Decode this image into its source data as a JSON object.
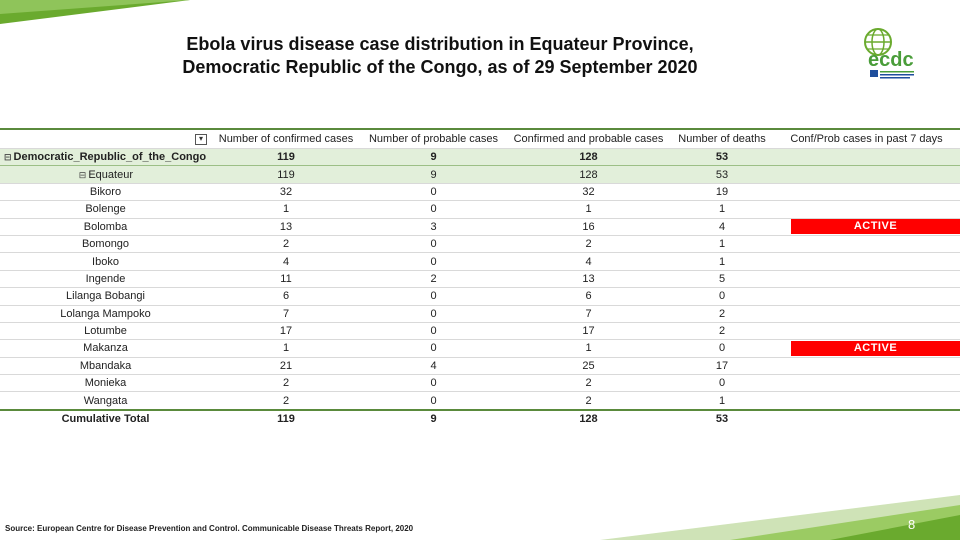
{
  "title_line1": "Ebola virus disease case distribution in Equateur Province,",
  "title_line2": "Democratic Republic of the Congo, as of 29 September 2020",
  "logo_text": "ecdc",
  "logo_caption": "EUROPEAN CENTRE FOR DISEASE PREVENTION AND CONTROL",
  "columns": [
    "Number of confirmed cases",
    "Number of probable cases",
    "Confirmed and probable cases",
    "Number of deaths",
    "Conf/Prob cases in past 7 days"
  ],
  "filter_icon": "filter-icon",
  "country": {
    "name": "Democratic_Republic_of_the_Congo",
    "toggle": "⊟",
    "values": [
      "119",
      "9",
      "128",
      "53",
      ""
    ]
  },
  "province": {
    "name": "Equateur",
    "toggle": "⊟",
    "values": [
      "119",
      "9",
      "128",
      "53",
      ""
    ]
  },
  "health_zones": [
    {
      "name": "Bikoro",
      "values": [
        "32",
        "0",
        "32",
        "19",
        ""
      ]
    },
    {
      "name": "Bolenge",
      "values": [
        "1",
        "0",
        "1",
        "1",
        ""
      ]
    },
    {
      "name": "Bolomba",
      "values": [
        "13",
        "3",
        "16",
        "4",
        "ACTIVE"
      ]
    },
    {
      "name": "Bomongo",
      "values": [
        "2",
        "0",
        "2",
        "1",
        ""
      ]
    },
    {
      "name": "Iboko",
      "values": [
        "4",
        "0",
        "4",
        "1",
        ""
      ]
    },
    {
      "name": "Ingende",
      "values": [
        "11",
        "2",
        "13",
        "5",
        ""
      ]
    },
    {
      "name": "Lilanga Bobangi",
      "values": [
        "6",
        "0",
        "6",
        "0",
        ""
      ]
    },
    {
      "name": "Lolanga Mampoko",
      "values": [
        "7",
        "0",
        "7",
        "2",
        ""
      ]
    },
    {
      "name": "Lotumbe",
      "values": [
        "17",
        "0",
        "17",
        "2",
        ""
      ]
    },
    {
      "name": "Makanza",
      "values": [
        "1",
        "0",
        "1",
        "0",
        "ACTIVE"
      ]
    },
    {
      "name": "Mbandaka",
      "values": [
        "21",
        "4",
        "25",
        "17",
        ""
      ]
    },
    {
      "name": "Monieka",
      "values": [
        "2",
        "0",
        "2",
        "0",
        ""
      ]
    },
    {
      "name": "Wangata",
      "values": [
        "2",
        "0",
        "2",
        "1",
        ""
      ]
    }
  ],
  "total": {
    "name": "Cumulative Total",
    "values": [
      "119",
      "9",
      "128",
      "53",
      ""
    ]
  },
  "colors": {
    "active": "#ff0000",
    "accent_green": "#6aaa2e",
    "header_rule": "#5a8a3c",
    "highlight_row": "#e2efda"
  },
  "source": "Source: European Centre for Disease Prevention and Control. Communicable Disease Threats Report, 2020",
  "page_number": "8"
}
